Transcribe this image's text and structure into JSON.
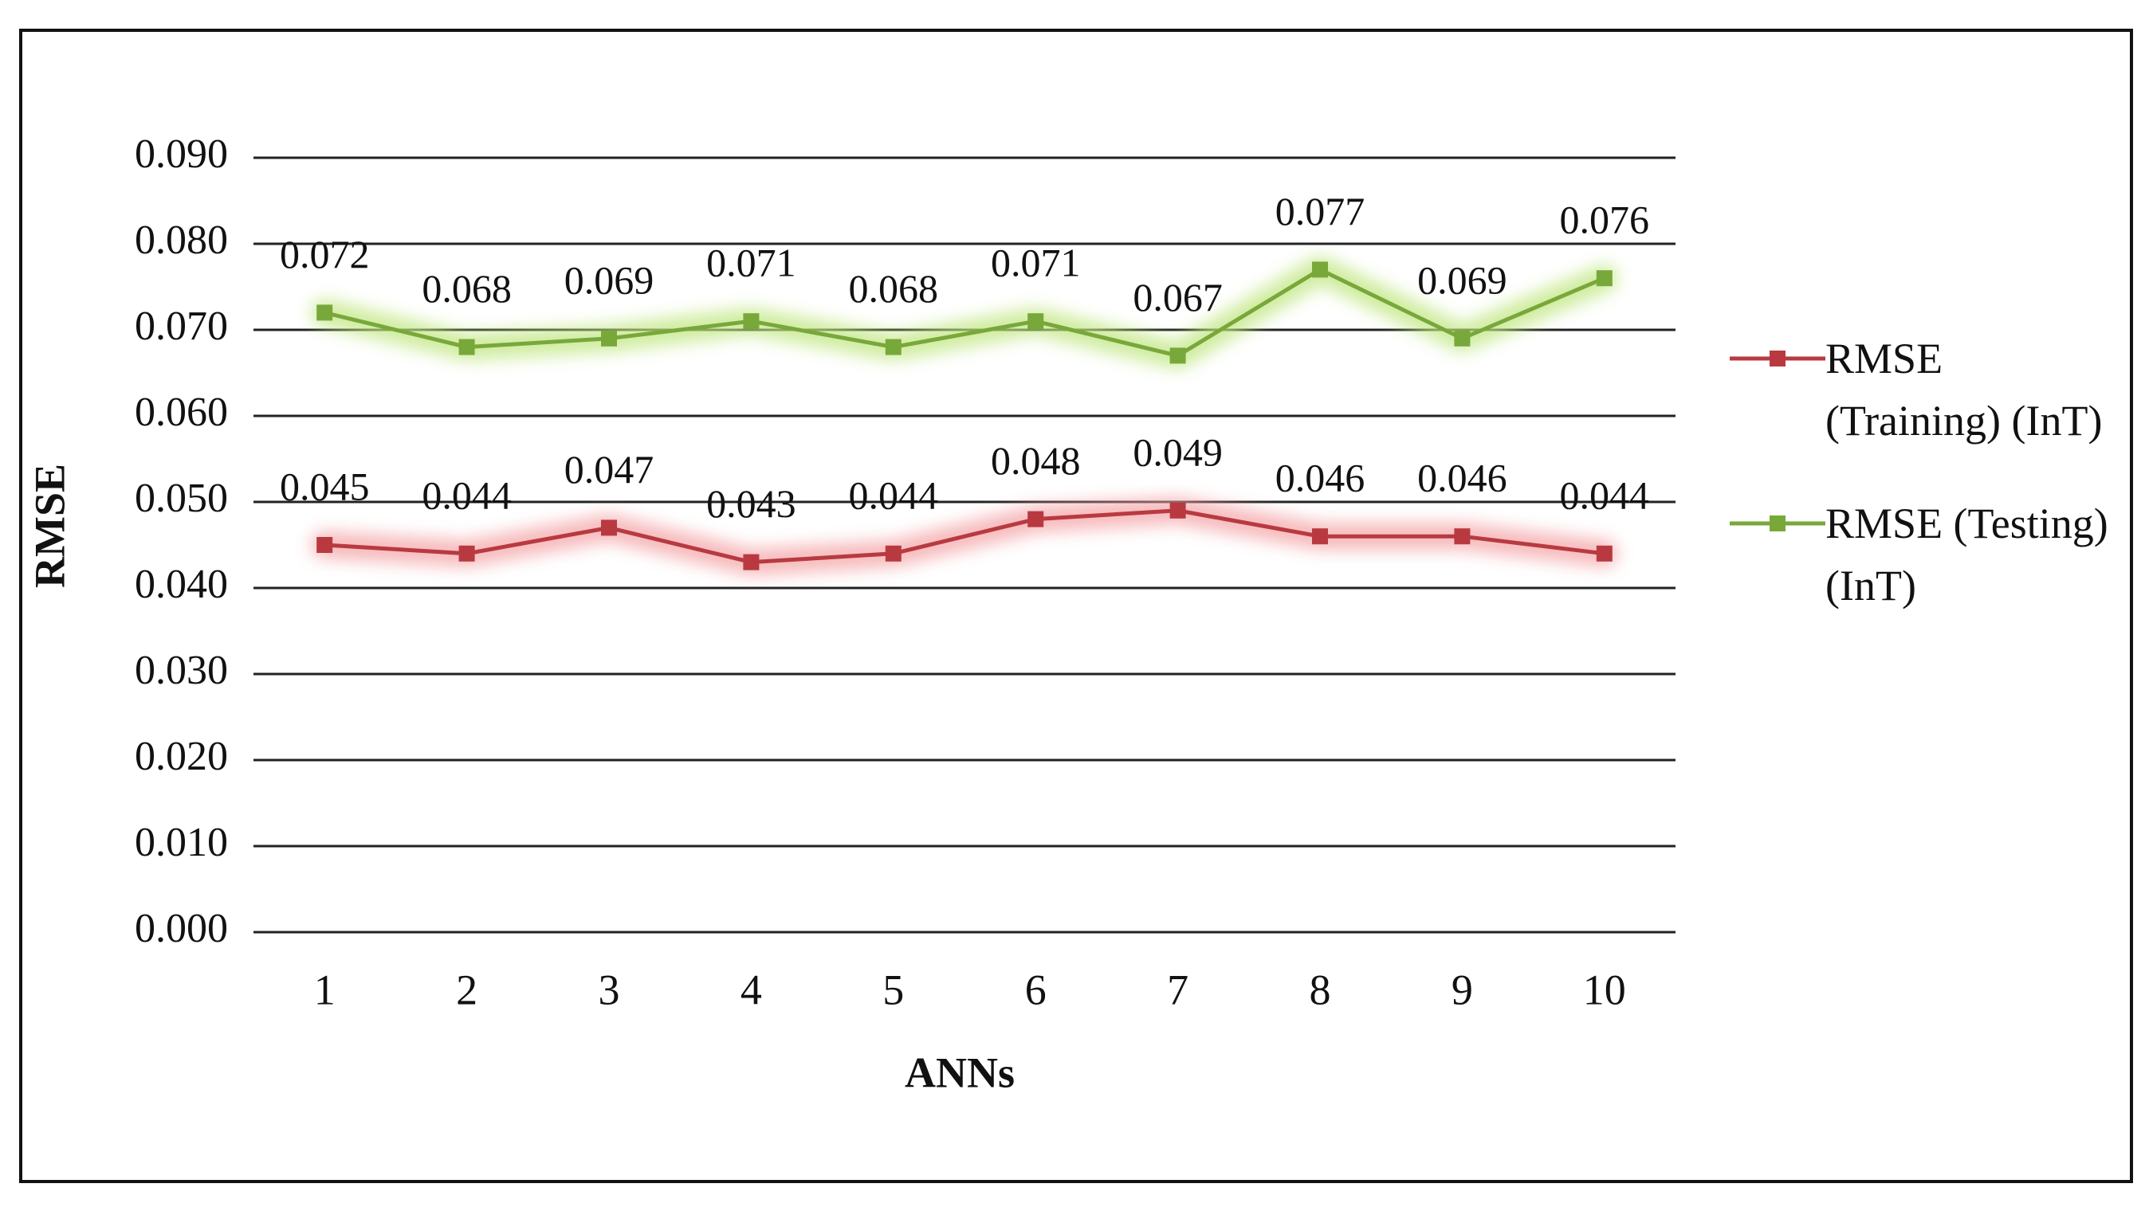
{
  "chart_data": {
    "type": "line",
    "x_label": "ANNs",
    "y_label": "RMSE",
    "categories": [
      "1",
      "2",
      "3",
      "4",
      "5",
      "6",
      "7",
      "8",
      "9",
      "10"
    ],
    "series": [
      {
        "name": "RMSE (Training) (InT)",
        "color": "#b83a40",
        "glow": "#f4a3a6",
        "values": [
          0.045,
          0.044,
          0.047,
          0.043,
          0.044,
          0.048,
          0.049,
          0.046,
          0.046,
          0.044
        ]
      },
      {
        "name": "RMSE (Testing) (InT)",
        "color": "#79a83a",
        "glow": "#bfe67f",
        "values": [
          0.072,
          0.068,
          0.069,
          0.071,
          0.068,
          0.071,
          0.067,
          0.077,
          0.069,
          0.076
        ]
      }
    ],
    "ylim": [
      0,
      0.09
    ],
    "yticks": [
      {
        "value": 0,
        "label": "0.000"
      },
      {
        "value": 0.01,
        "label": "0.010"
      },
      {
        "value": 0.02,
        "label": "0.020"
      },
      {
        "value": 0.03,
        "label": "0.030"
      },
      {
        "value": 0.04,
        "label": "0.040"
      },
      {
        "value": 0.05,
        "label": "0.050"
      },
      {
        "value": 0.06,
        "label": "0.060"
      },
      {
        "value": 0.07,
        "label": "0.070"
      },
      {
        "value": 0.08,
        "label": "0.080"
      },
      {
        "value": 0.09,
        "label": "0.090"
      }
    ],
    "grid": true,
    "legend": "right"
  }
}
